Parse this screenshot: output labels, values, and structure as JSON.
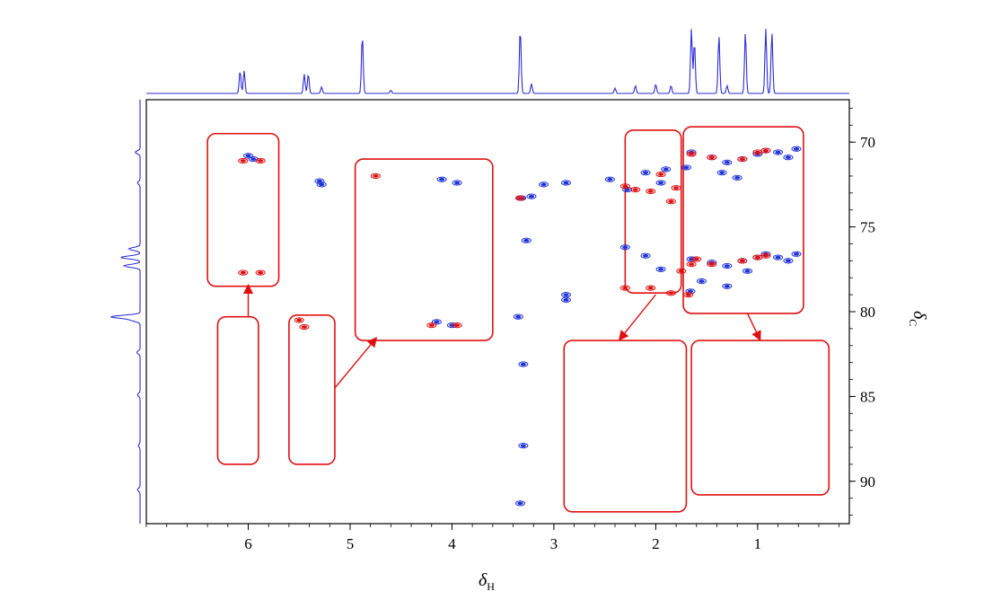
{
  "chart_data": {
    "type": "scatter",
    "title": "",
    "xlabel": {
      "symbol": "δ",
      "subscript": "H"
    },
    "ylabel": {
      "symbol": "δ",
      "subscript": "C"
    },
    "xlim": [
      7.0,
      0.1
    ],
    "ylim": [
      92.5,
      67.5
    ],
    "x_reversed": true,
    "y_reversed": true,
    "x_ticks": [
      6,
      5,
      4,
      3,
      2,
      1
    ],
    "y_ticks": [
      70,
      75,
      80,
      85,
      90
    ],
    "grid": false,
    "legend": "none",
    "colors": {
      "positive": "#1f33d6",
      "negative": "#e01010",
      "frame": "#e01010",
      "trace": "#2b2bd9",
      "axis": "#000000"
    },
    "series": [
      {
        "color": "blue",
        "x": [
          6.0,
          5.95,
          5.3,
          5.28,
          3.95,
          4.1,
          4.0,
          4.15,
          3.1,
          2.88,
          2.88,
          3.27,
          3.22,
          2.88,
          3.35,
          3.3,
          3.3,
          3.33,
          3.32,
          2.45,
          2.28,
          2.1,
          1.95,
          1.9,
          2.3,
          2.1,
          1.95,
          1.65,
          1.45,
          1.3,
          1.15,
          1.0,
          0.92,
          0.8,
          0.7,
          0.62,
          1.65,
          1.45,
          1.3,
          1.15,
          1.0,
          0.92,
          0.8,
          0.7,
          0.62,
          1.35,
          1.2,
          1.1,
          1.55,
          1.3,
          1.7,
          1.66
        ],
        "y": [
          70.8,
          71.0,
          72.3,
          72.5,
          72.4,
          72.2,
          80.8,
          80.6,
          72.5,
          72.4,
          79.3,
          75.8,
          73.2,
          79.0,
          80.3,
          83.1,
          87.9,
          91.3,
          73.3,
          72.2,
          72.8,
          71.8,
          72.4,
          71.6,
          76.2,
          76.7,
          77.5,
          70.6,
          70.9,
          71.2,
          71.0,
          70.7,
          70.5,
          70.6,
          70.9,
          70.4,
          76.9,
          77.1,
          77.3,
          77.0,
          76.8,
          76.6,
          76.8,
          77.0,
          76.6,
          71.8,
          72.1,
          77.6,
          78.2,
          78.5,
          71.5,
          78.8
        ]
      },
      {
        "color": "red",
        "x": [
          6.05,
          5.88,
          6.05,
          5.88,
          5.5,
          5.45,
          4.75,
          3.95,
          4.2,
          3.33,
          2.3,
          2.2,
          2.05,
          1.95,
          1.8,
          1.85,
          2.3,
          2.05,
          1.85,
          1.75,
          1.65,
          1.65,
          1.45,
          1.15,
          1.0,
          0.92,
          1.45,
          1.15,
          1.0,
          0.92,
          1.6,
          1.68
        ],
        "y": [
          71.1,
          71.1,
          77.7,
          77.7,
          80.5,
          80.9,
          72.0,
          80.8,
          80.8,
          73.3,
          72.6,
          72.8,
          72.9,
          71.9,
          72.7,
          73.5,
          78.6,
          78.6,
          78.9,
          77.6,
          70.7,
          77.2,
          70.9,
          71.0,
          70.6,
          70.5,
          77.2,
          77.0,
          76.8,
          76.7,
          76.9,
          79.0
        ]
      }
    ],
    "annotations": [
      {
        "type": "box",
        "x": [
          6.4,
          5.7
        ],
        "y": [
          69.5,
          78.5
        ]
      },
      {
        "type": "box",
        "x": [
          6.3,
          5.9
        ],
        "y": [
          80.3,
          89.0
        ]
      },
      {
        "type": "box",
        "x": [
          5.6,
          5.15
        ],
        "y": [
          80.2,
          89.0
        ]
      },
      {
        "type": "box",
        "x": [
          4.95,
          3.6
        ],
        "y": [
          71.0,
          81.7
        ]
      },
      {
        "type": "box",
        "x": [
          2.3,
          1.75
        ],
        "y": [
          69.3,
          78.9
        ]
      },
      {
        "type": "box",
        "x": [
          1.73,
          0.55
        ],
        "y": [
          69.1,
          80.1
        ]
      },
      {
        "type": "box",
        "x": [
          2.9,
          1.7
        ],
        "y": [
          81.7,
          91.8
        ]
      },
      {
        "type": "box",
        "x": [
          1.65,
          0.3
        ],
        "y": [
          81.7,
          90.8
        ]
      },
      {
        "type": "arrow",
        "from": [
          6.0,
          80.3
        ],
        "to": [
          6.0,
          78.5
        ]
      },
      {
        "type": "arrow",
        "from": [
          5.15,
          84.5
        ],
        "to": [
          4.75,
          81.6
        ]
      },
      {
        "type": "arrow",
        "from": [
          2.0,
          79.0
        ],
        "to": [
          2.35,
          81.6
        ]
      },
      {
        "type": "arrow",
        "from": [
          1.1,
          80.1
        ],
        "to": [
          0.98,
          81.6
        ]
      }
    ],
    "f2_projection": {
      "x": [
        6.08,
        6.04,
        5.45,
        5.41,
        5.28,
        4.88,
        4.6,
        3.33,
        3.22,
        2.4,
        2.2,
        2.0,
        1.85,
        1.65,
        1.62,
        1.38,
        1.3,
        1.12,
        0.92,
        0.86
      ],
      "height": [
        0.35,
        0.35,
        0.3,
        0.3,
        0.1,
        0.9,
        0.05,
        1.0,
        0.15,
        0.08,
        0.12,
        0.14,
        0.12,
        1.0,
        0.8,
        0.9,
        0.12,
        0.95,
        1.0,
        0.95
      ]
    },
    "f1_projection": {
      "y": [
        70.6,
        72.4,
        76.3,
        76.8,
        77.3,
        80.3,
        80.5,
        82.4,
        84.9,
        87.9,
        90.5
      ],
      "height": [
        0.15,
        0.08,
        0.35,
        0.6,
        0.5,
        0.9,
        0.25,
        0.1,
        0.08,
        0.05,
        0.08
      ]
    }
  }
}
